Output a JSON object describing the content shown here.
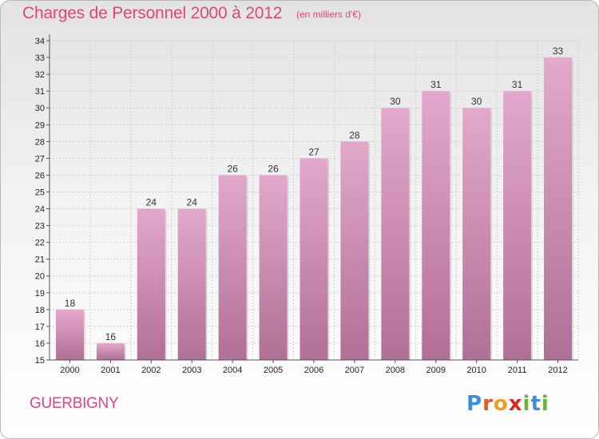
{
  "title": "Charges de Personnel 2000 à 2012",
  "subtitle": "(en milliers d'€)",
  "town": "GUERBIGNY",
  "logo": {
    "letters": [
      "P",
      "r",
      "o",
      "x",
      "i",
      "t",
      "i"
    ],
    "colors": [
      "#3a8fd8",
      "#e05a2b",
      "#f0a020",
      "#d8262a",
      "#6ab532",
      "#3a8fd8",
      "#6ab532"
    ]
  },
  "colors": {
    "bar_top": "#e4a8cc",
    "bar_bottom": "#b06f97",
    "accent": "#e0457b"
  },
  "chart_data": {
    "type": "bar",
    "title": "Charges de Personnel 2000 à 2012",
    "subtitle": "(en milliers d'€)",
    "categories": [
      "2000",
      "2001",
      "2002",
      "2003",
      "2004",
      "2005",
      "2006",
      "2007",
      "2008",
      "2009",
      "2010",
      "2011",
      "2012"
    ],
    "values": [
      18,
      16,
      24,
      24,
      26,
      26,
      27,
      28,
      30,
      31,
      30,
      31,
      33
    ],
    "ylim": [
      15,
      34
    ],
    "yticks": [
      15,
      16,
      17,
      18,
      19,
      20,
      21,
      22,
      23,
      24,
      25,
      26,
      27,
      28,
      29,
      30,
      31,
      32,
      33,
      34
    ],
    "grid": true,
    "data_labels": true
  }
}
